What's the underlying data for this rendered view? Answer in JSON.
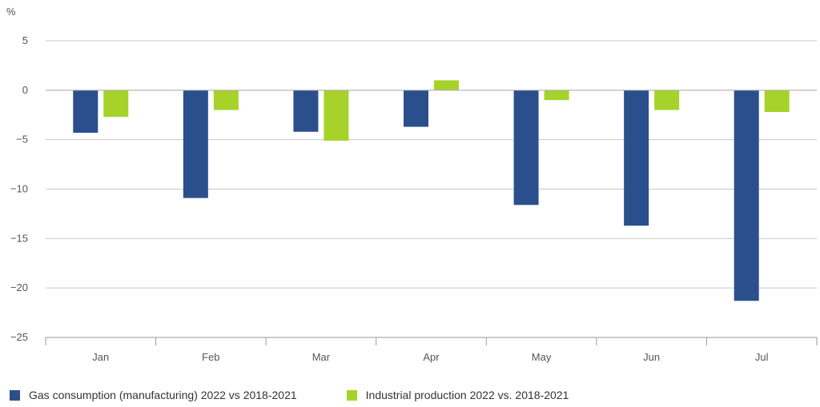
{
  "chart_data": {
    "type": "bar",
    "ylabel": "%",
    "categories": [
      "Jan",
      "Feb",
      "Mar",
      "Apr",
      "May",
      "Jun",
      "Jul"
    ],
    "series": [
      {
        "name": "Gas consumption (manufacturing) 2022 vs 2018-2021",
        "color": "#2b4f8d",
        "values": [
          -4.3,
          -10.9,
          -4.2,
          -3.7,
          -11.6,
          -13.7,
          -21.3
        ]
      },
      {
        "name": "Industrial production 2022 vs. 2018-2021",
        "color": "#a6d22a",
        "values": [
          -2.7,
          -2.0,
          -5.1,
          1.0,
          -1.0,
          -2.0,
          -2.2
        ]
      }
    ],
    "ylim": [
      -25,
      5
    ],
    "yticks": [
      5,
      0,
      -5,
      -10,
      -15,
      -20,
      -25
    ],
    "ytick_labels": [
      "5",
      "0",
      "−5",
      "−10",
      "−15",
      "−20",
      "−25"
    ],
    "grid": "horizontal",
    "legend_position": "bottom-left"
  }
}
